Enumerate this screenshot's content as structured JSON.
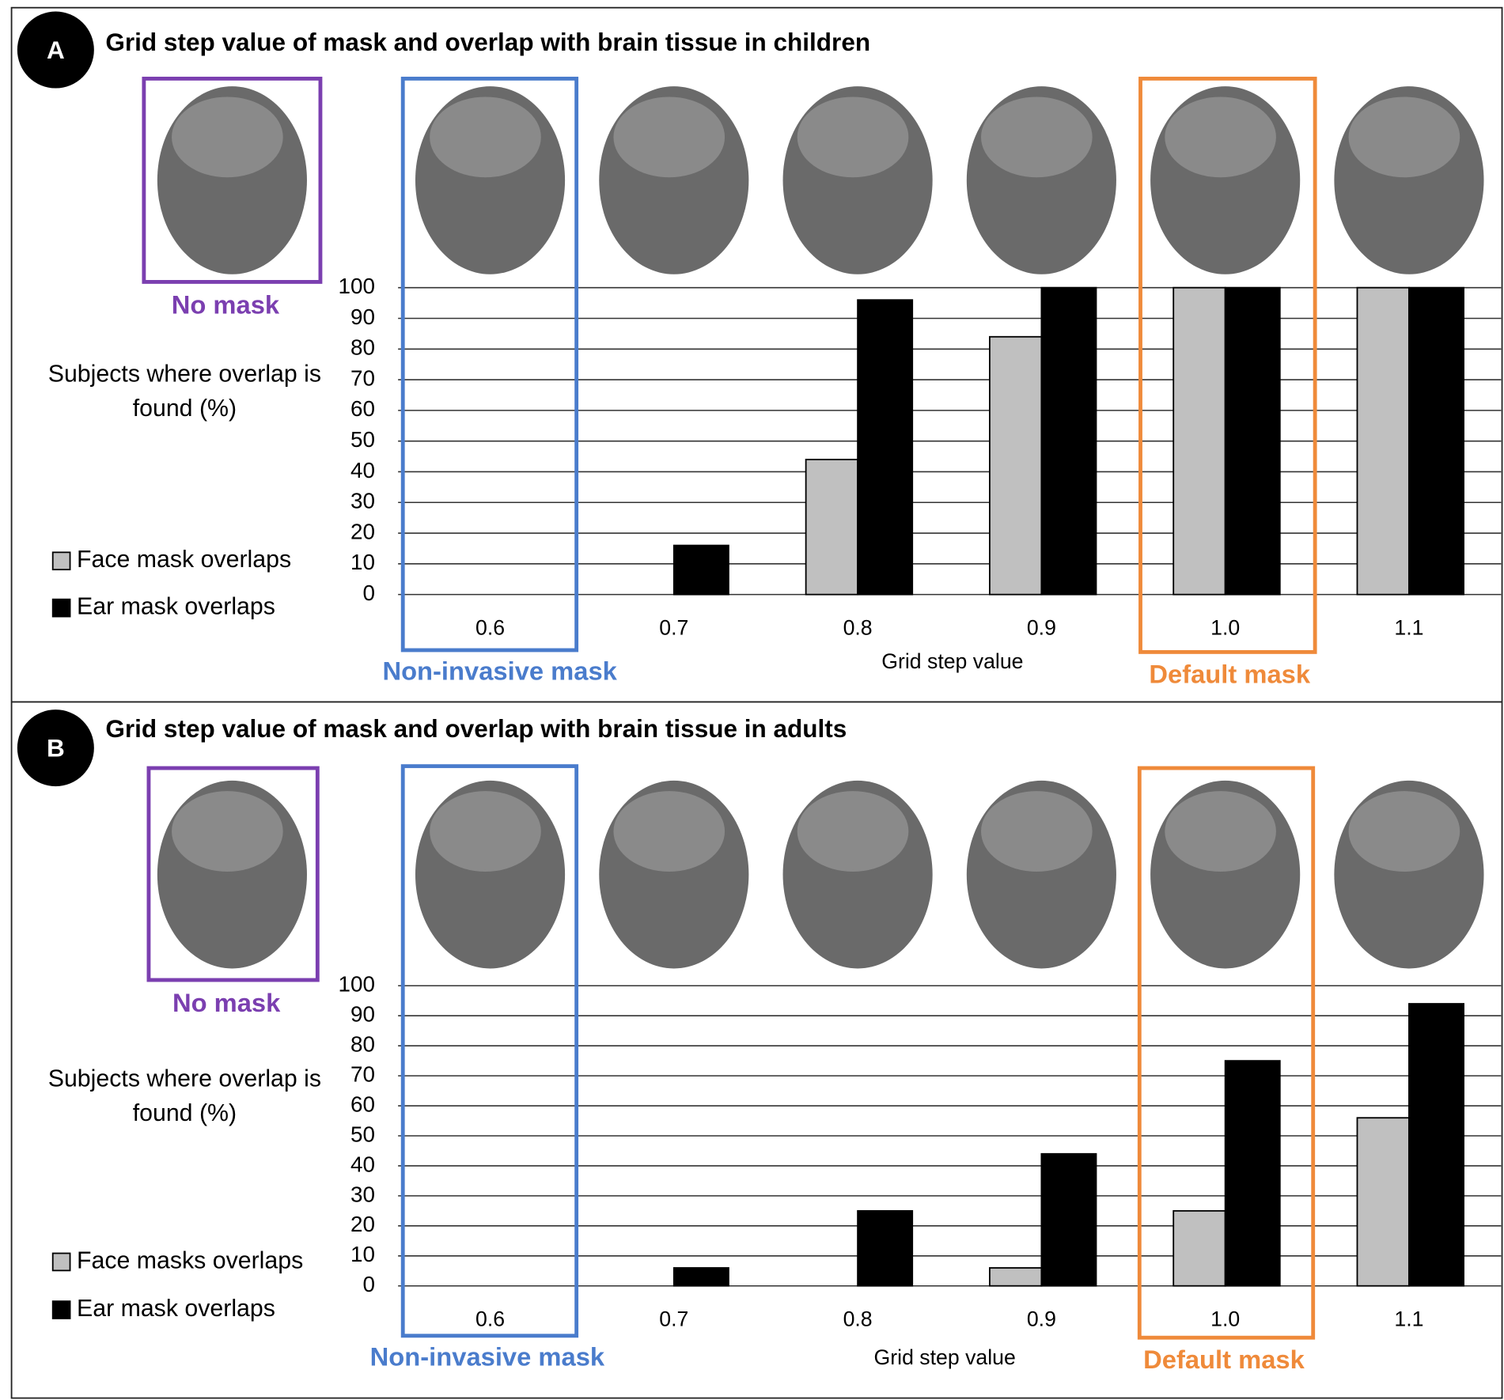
{
  "chart_data": [
    {
      "type": "bar",
      "panel_label": "A",
      "title": "Grid step value of mask and overlap with brain tissue in children",
      "ylabel": "Subjects where overlap is found (%)",
      "xlabel": "Grid step value",
      "categories": [
        "0.6",
        "0.7",
        "0.8",
        "0.9",
        "1.0",
        "1.1"
      ],
      "series": [
        {
          "name": "Face mask overlaps",
          "color": "#c0c0c0",
          "values": [
            0,
            0,
            44,
            84,
            100,
            100
          ]
        },
        {
          "name": "Ear mask overlaps",
          "color": "#000000",
          "values": [
            0,
            16,
            96,
            100,
            100,
            100
          ]
        }
      ],
      "ylim": [
        0,
        100
      ],
      "yticks": [
        0,
        10,
        20,
        30,
        40,
        50,
        60,
        70,
        80,
        90,
        100
      ],
      "grid": true,
      "annotations": [
        {
          "text": "No mask",
          "color": "#7b3fb0"
        },
        {
          "text": "Non-invasive mask",
          "color": "#4a7ccc"
        },
        {
          "text": "Default mask",
          "color": "#ef8a3a"
        }
      ]
    },
    {
      "type": "bar",
      "panel_label": "B",
      "title": "Grid step value of mask and overlap with brain tissue in adults",
      "ylabel": "Subjects where overlap is found (%)",
      "xlabel": "Grid step value",
      "categories": [
        "0.6",
        "0.7",
        "0.8",
        "0.9",
        "1.0",
        "1.1"
      ],
      "series": [
        {
          "name": "Face masks overlaps",
          "color": "#c0c0c0",
          "values": [
            0,
            0,
            0,
            6,
            25,
            56
          ]
        },
        {
          "name": "Ear mask overlaps",
          "color": "#000000",
          "values": [
            0,
            6,
            25,
            44,
            75,
            94
          ]
        }
      ],
      "ylim": [
        0,
        100
      ],
      "yticks": [
        0,
        10,
        20,
        30,
        40,
        50,
        60,
        70,
        80,
        90,
        100
      ],
      "grid": true,
      "annotations": [
        {
          "text": "No mask",
          "color": "#7b3fb0"
        },
        {
          "text": "Non-invasive mask",
          "color": "#4a7ccc"
        },
        {
          "text": "Default mask",
          "color": "#ef8a3a"
        }
      ]
    }
  ]
}
